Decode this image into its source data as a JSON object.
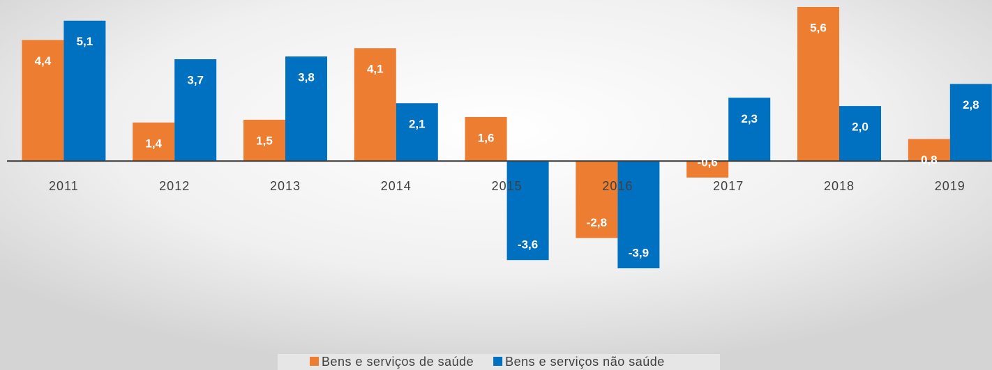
{
  "chart_data": {
    "type": "bar",
    "categories": [
      "2011",
      "2012",
      "2013",
      "2014",
      "2015",
      "2016",
      "2017",
      "2018",
      "2019"
    ],
    "series": [
      {
        "name": "Bens e serviços de saúde",
        "color": "#ed7d31",
        "values": [
          4.4,
          1.4,
          1.5,
          4.1,
          1.6,
          -2.8,
          -0.6,
          5.6,
          0.8
        ],
        "value_labels": [
          "4,4",
          "1,4",
          "1,5",
          "4,1",
          "1,6",
          "-2,8",
          "-0,6",
          "5,6",
          "0,8"
        ]
      },
      {
        "name": "Bens e serviços não saúde",
        "color": "#0070c0",
        "values": [
          5.1,
          3.7,
          3.8,
          2.1,
          -3.6,
          -3.9,
          2.3,
          2.0,
          2.8
        ],
        "value_labels": [
          "5,1",
          "3,7",
          "3,8",
          "2,1",
          "-3,6",
          "-3,9",
          "2,3",
          "2,0",
          "2,8"
        ]
      }
    ],
    "ylim": [
      -4,
      5.6
    ],
    "legend": "bottom"
  }
}
